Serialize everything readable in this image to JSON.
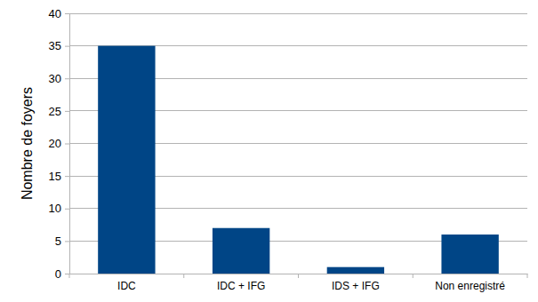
{
  "chart_data": {
    "type": "bar",
    "y_label": "Nombre de foyers",
    "categories": [
      "IDC",
      "IDC + IFG",
      "IDS + IFG",
      "Non enregistré"
    ],
    "values": [
      35,
      7,
      1,
      6
    ],
    "color": "#004586",
    "ylim": [
      0,
      40
    ],
    "yticks": [
      0,
      5,
      10,
      15,
      20,
      25,
      30,
      35,
      40
    ],
    "grid": true
  }
}
